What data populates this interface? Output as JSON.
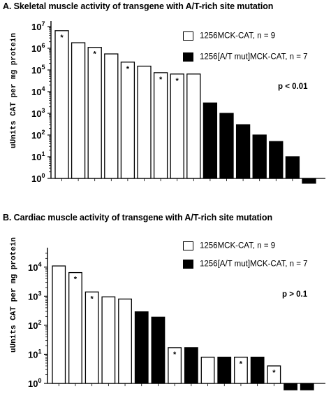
{
  "chart_data": [
    {
      "type": "bar",
      "title": "A.  Skeletal muscle activity of transgene with A/T-rich site mutation",
      "ylabel": "uUnits CAT per mg protein",
      "yscale": "log",
      "ylim": [
        1,
        10000000
      ],
      "ytick_base": "10",
      "ytick_exponents": [
        "0",
        "1",
        "2",
        "3",
        "4",
        "5",
        "6",
        "7"
      ],
      "annotation": "p < 0.01",
      "legend": [
        {
          "label": "1256MCK-CAT, n = 9",
          "fill": "white"
        },
        {
          "label": "1256[A/T mut]MCK-CAT, n = 7",
          "fill": "black"
        }
      ],
      "series": [
        {
          "name": "1256MCK-CAT, n = 9",
          "fill": "white",
          "values": [
            6500000,
            1800000,
            1100000,
            550000,
            230000,
            150000,
            75000,
            65000,
            65000
          ],
          "starred": [
            true,
            false,
            true,
            false,
            true,
            false,
            true,
            true,
            false
          ]
        },
        {
          "name": "1256[A/T mut]MCK-CAT, n = 7",
          "fill": "black",
          "values": [
            3000,
            1000,
            300,
            100,
            50,
            10,
            0.6
          ],
          "starred": [
            false,
            false,
            false,
            false,
            false,
            false,
            false
          ]
        }
      ]
    },
    {
      "type": "bar",
      "title": "B.  Cardiac muscle activity of transgene with A/T-rich site mutation",
      "ylabel": "uUnits CAT per mg protein",
      "yscale": "log",
      "ylim": [
        1,
        30000
      ],
      "ytick_base": "10",
      "ytick_exponents": [
        "0",
        "1",
        "2",
        "3",
        "4"
      ],
      "annotation": "p > 0.1",
      "legend": [
        {
          "label": "1256MCK-CAT, n = 9",
          "fill": "white"
        },
        {
          "label": "1256[A/T mut]MCK-CAT, n = 7",
          "fill": "black"
        }
      ],
      "bars": [
        {
          "value": 11000,
          "fill": "white",
          "star": false
        },
        {
          "value": 6500,
          "fill": "white",
          "star": true
        },
        {
          "value": 1400,
          "fill": "white",
          "star": true
        },
        {
          "value": 950,
          "fill": "white",
          "star": false
        },
        {
          "value": 800,
          "fill": "white",
          "star": false
        },
        {
          "value": 290,
          "fill": "black",
          "star": false
        },
        {
          "value": 190,
          "fill": "black",
          "star": false
        },
        {
          "value": 17,
          "fill": "white",
          "star": true
        },
        {
          "value": 17,
          "fill": "black",
          "star": false
        },
        {
          "value": 8,
          "fill": "white",
          "star": false
        },
        {
          "value": 8,
          "fill": "black",
          "star": false
        },
        {
          "value": 8,
          "fill": "white",
          "star": true
        },
        {
          "value": 8,
          "fill": "black",
          "star": false
        },
        {
          "value": 4,
          "fill": "white",
          "star": true
        },
        {
          "value": 0.6,
          "fill": "black",
          "star": false
        },
        {
          "value": 0.6,
          "fill": "black",
          "star": false
        }
      ]
    }
  ]
}
